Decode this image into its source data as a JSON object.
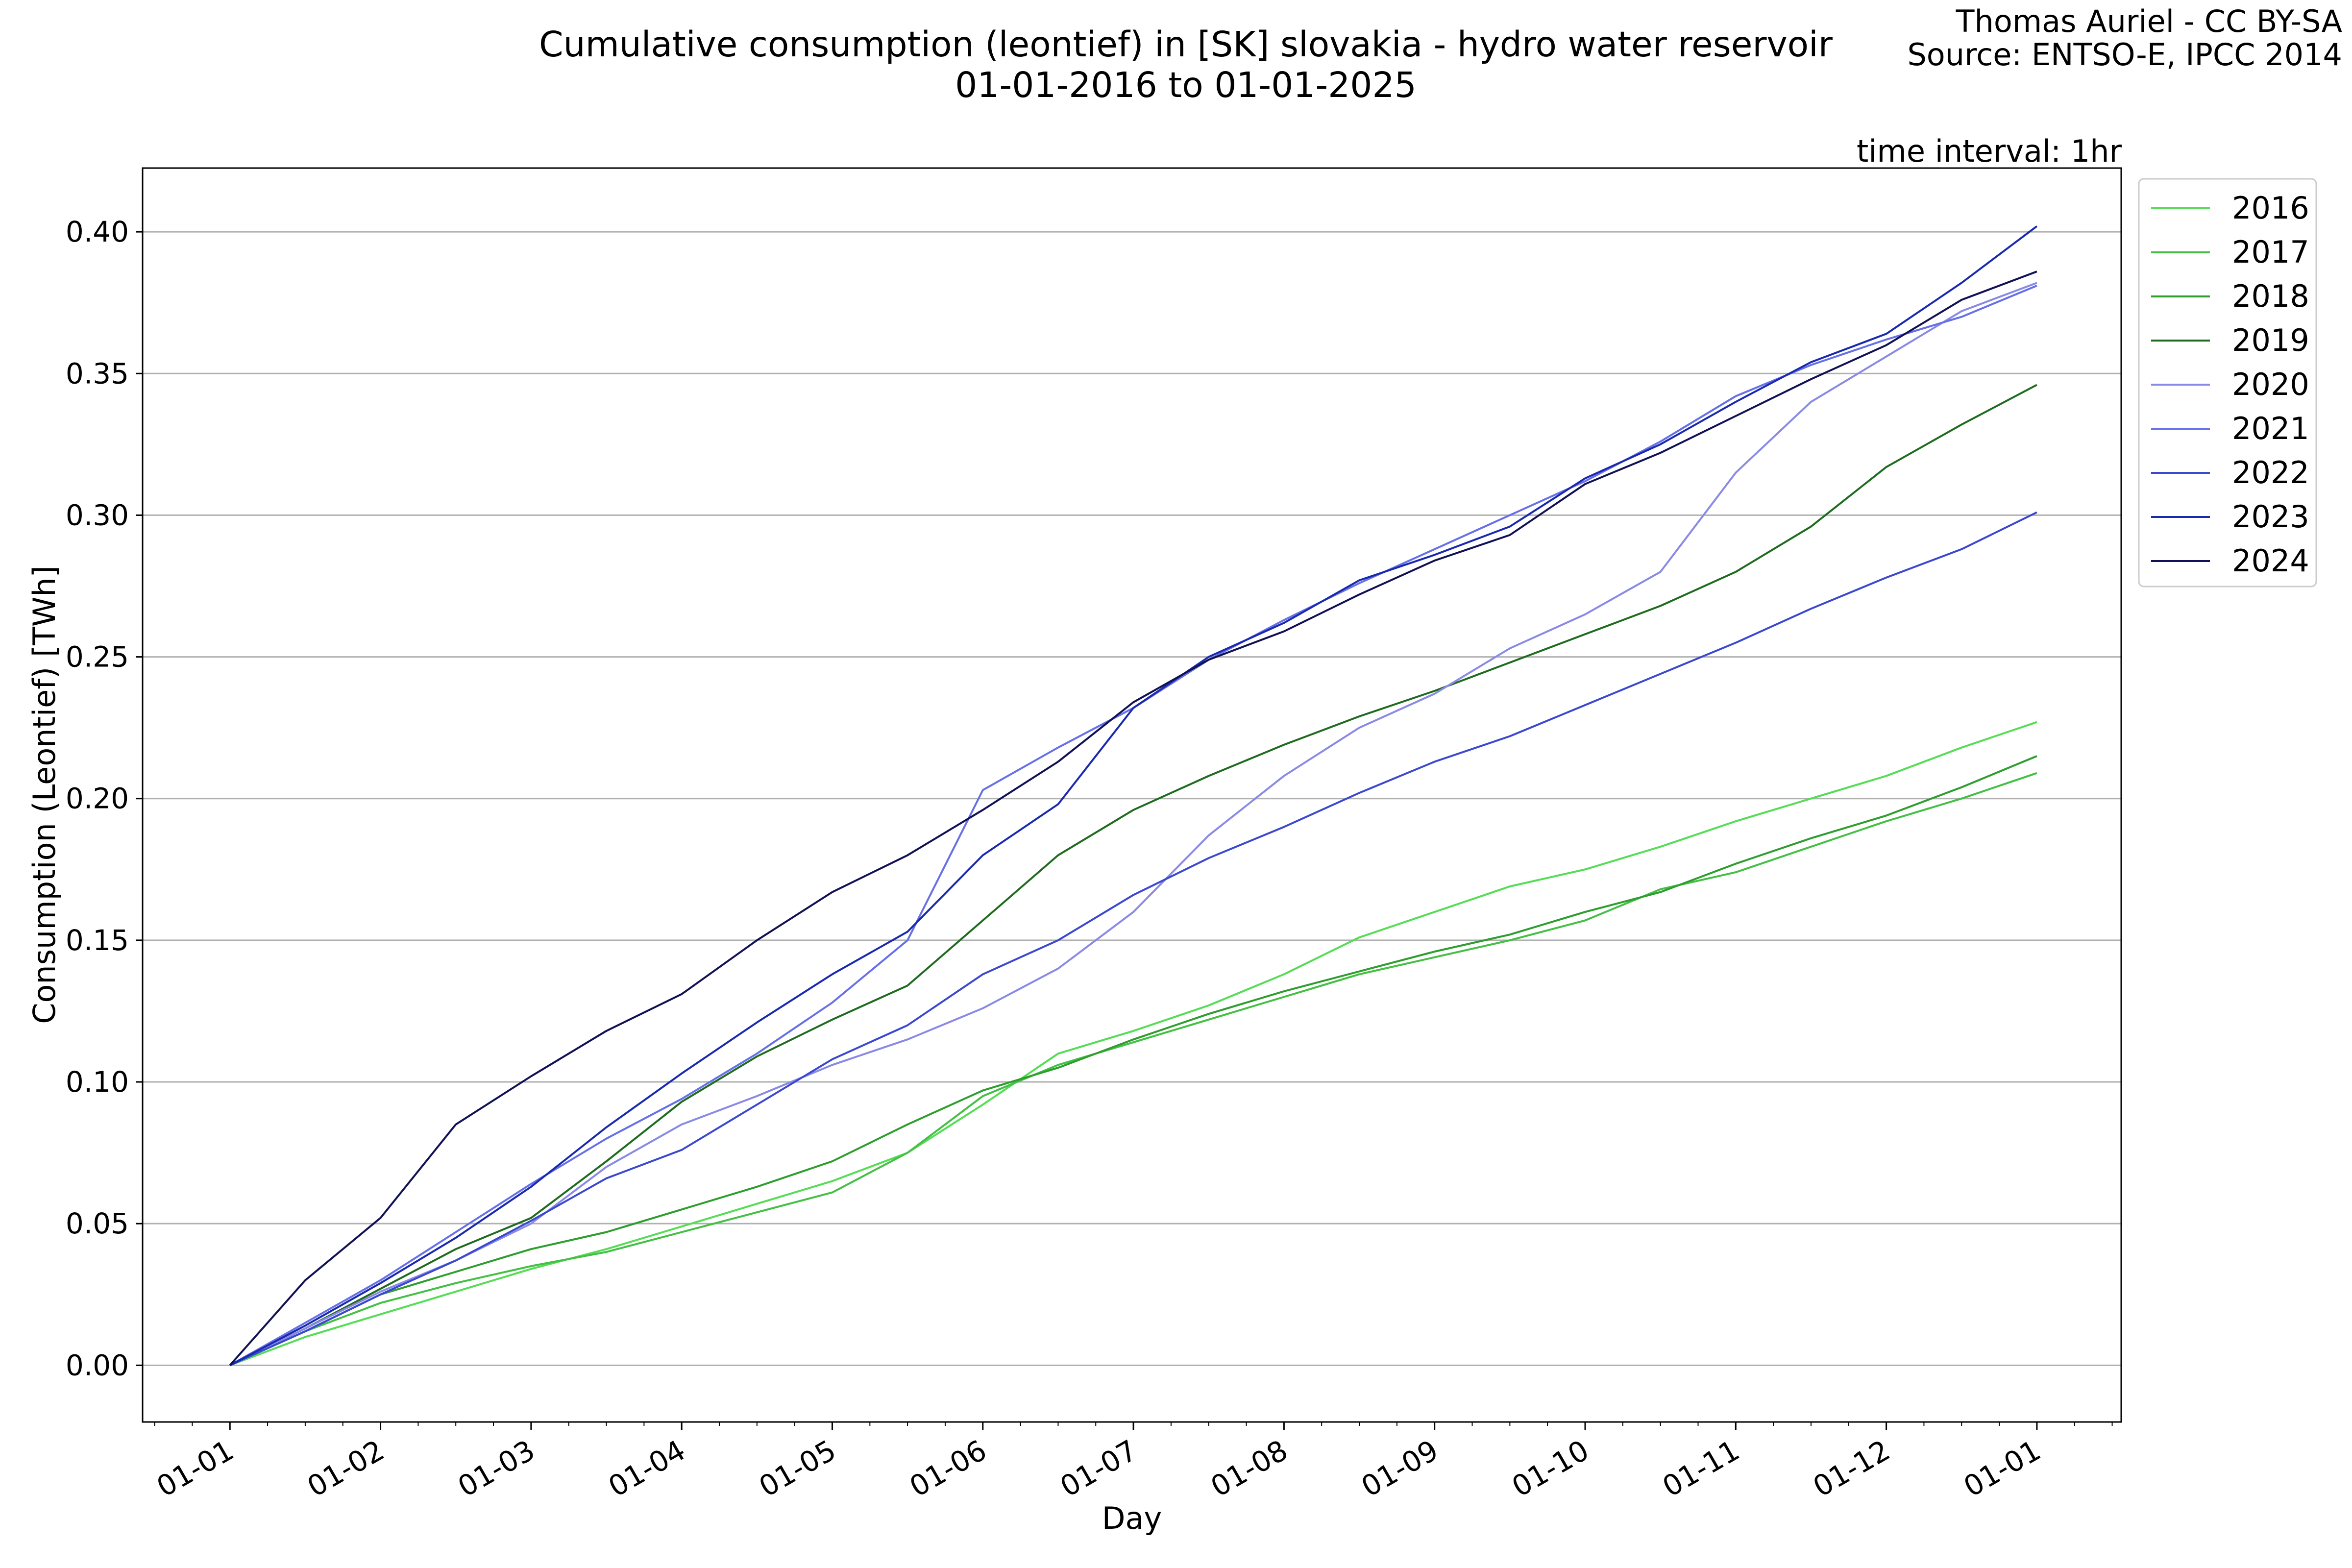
{
  "header": {
    "title_line1": "Cumulative consumption (leontief) in [SK] slovakia - hydro water reservoir",
    "title_line2": "01-01-2016 to 01-01-2025",
    "credit_line1": "Thomas Auriel - CC BY-SA",
    "credit_line2": "Source: ENTSO-E, IPCC 2014",
    "interval_note": "time interval: 1hr"
  },
  "chart_data": {
    "type": "line",
    "xlabel": "Day",
    "ylabel": "Consumption (Leontief) [TWh]",
    "x_unit": "month (01-01 = start of year, 13 = 01-01 of next year)",
    "xlim": [
      0.42,
      13.56
    ],
    "ylim": [
      -0.02,
      0.4225
    ],
    "x_ticks": [
      1,
      2,
      3,
      4,
      5,
      6,
      7,
      8,
      9,
      10,
      11,
      12,
      13
    ],
    "x_tick_labels": [
      "01-01",
      "01-02",
      "01-03",
      "01-04",
      "01-05",
      "01-06",
      "01-07",
      "01-08",
      "01-09",
      "01-10",
      "01-11",
      "01-12",
      "01-01"
    ],
    "y_ticks": [
      0.0,
      0.05,
      0.1,
      0.15,
      0.2,
      0.25,
      0.3,
      0.35,
      0.4
    ],
    "y_tick_labels": [
      "0.00",
      "0.05",
      "0.10",
      "0.15",
      "0.20",
      "0.25",
      "0.30",
      "0.35",
      "0.40"
    ],
    "grid": "horizontal",
    "legend_position": "outside-right-top",
    "x": [
      1,
      1.5,
      2,
      2.5,
      3,
      3.5,
      4,
      4.5,
      5,
      5.5,
      6,
      6.5,
      7,
      7.5,
      8,
      8.5,
      9,
      9.5,
      10,
      10.5,
      11,
      11.5,
      12,
      12.5,
      13
    ],
    "series": [
      {
        "name": "2016",
        "color": "#55dd55",
        "values": [
          0,
          0.01,
          0.018,
          0.026,
          0.034,
          0.041,
          0.049,
          0.057,
          0.065,
          0.075,
          0.092,
          0.11,
          0.118,
          0.127,
          0.138,
          0.151,
          0.16,
          0.169,
          0.175,
          0.183,
          0.192,
          0.2,
          0.208,
          0.218,
          0.227
        ]
      },
      {
        "name": "2017",
        "color": "#44c044",
        "values": [
          0,
          0.012,
          0.022,
          0.029,
          0.035,
          0.04,
          0.047,
          0.054,
          0.061,
          0.075,
          0.095,
          0.106,
          0.114,
          0.122,
          0.13,
          0.138,
          0.144,
          0.15,
          0.157,
          0.168,
          0.174,
          0.183,
          0.192,
          0.2,
          0.209
        ]
      },
      {
        "name": "2018",
        "color": "#2e9e2e",
        "values": [
          0,
          0.012,
          0.025,
          0.033,
          0.041,
          0.047,
          0.055,
          0.063,
          0.072,
          0.085,
          0.097,
          0.105,
          0.115,
          0.124,
          0.132,
          0.139,
          0.146,
          0.152,
          0.16,
          0.167,
          0.177,
          0.186,
          0.194,
          0.204,
          0.215
        ]
      },
      {
        "name": "2019",
        "color": "#1f6b1f",
        "values": [
          0,
          0.013,
          0.027,
          0.041,
          0.052,
          0.072,
          0.093,
          0.109,
          0.122,
          0.134,
          0.157,
          0.18,
          0.196,
          0.208,
          0.219,
          0.229,
          0.238,
          0.248,
          0.258,
          0.268,
          0.28,
          0.296,
          0.317,
          0.332,
          0.346
        ]
      },
      {
        "name": "2020",
        "color": "#8a8ae6",
        "values": [
          0,
          0.013,
          0.026,
          0.037,
          0.05,
          0.07,
          0.085,
          0.095,
          0.106,
          0.115,
          0.126,
          0.14,
          0.16,
          0.187,
          0.208,
          0.225,
          0.237,
          0.253,
          0.265,
          0.28,
          0.315,
          0.34,
          0.356,
          0.372,
          0.382
        ]
      },
      {
        "name": "2021",
        "color": "#6670e8",
        "values": [
          0,
          0.015,
          0.03,
          0.047,
          0.064,
          0.08,
          0.094,
          0.11,
          0.128,
          0.15,
          0.203,
          0.218,
          0.232,
          0.249,
          0.263,
          0.276,
          0.288,
          0.3,
          0.312,
          0.326,
          0.342,
          0.353,
          0.362,
          0.37,
          0.381
        ]
      },
      {
        "name": "2022",
        "color": "#3b48d0",
        "values": [
          0,
          0.012,
          0.025,
          0.037,
          0.051,
          0.066,
          0.076,
          0.092,
          0.108,
          0.12,
          0.138,
          0.15,
          0.166,
          0.179,
          0.19,
          0.202,
          0.213,
          0.222,
          0.233,
          0.244,
          0.255,
          0.267,
          0.278,
          0.288,
          0.301
        ]
      },
      {
        "name": "2023",
        "color": "#1a2ab0",
        "values": [
          0,
          0.014,
          0.029,
          0.045,
          0.063,
          0.084,
          0.103,
          0.121,
          0.138,
          0.153,
          0.18,
          0.198,
          0.232,
          0.25,
          0.262,
          0.277,
          0.286,
          0.296,
          0.313,
          0.325,
          0.34,
          0.354,
          0.364,
          0.382,
          0.402
        ]
      },
      {
        "name": "2024",
        "color": "#111155",
        "values": [
          0,
          0.03,
          0.052,
          0.085,
          0.102,
          0.118,
          0.131,
          0.15,
          0.167,
          0.18,
          0.196,
          0.213,
          0.234,
          0.249,
          0.259,
          0.272,
          0.284,
          0.293,
          0.311,
          0.322,
          0.335,
          0.348,
          0.36,
          0.376,
          0.386
        ]
      }
    ]
  }
}
